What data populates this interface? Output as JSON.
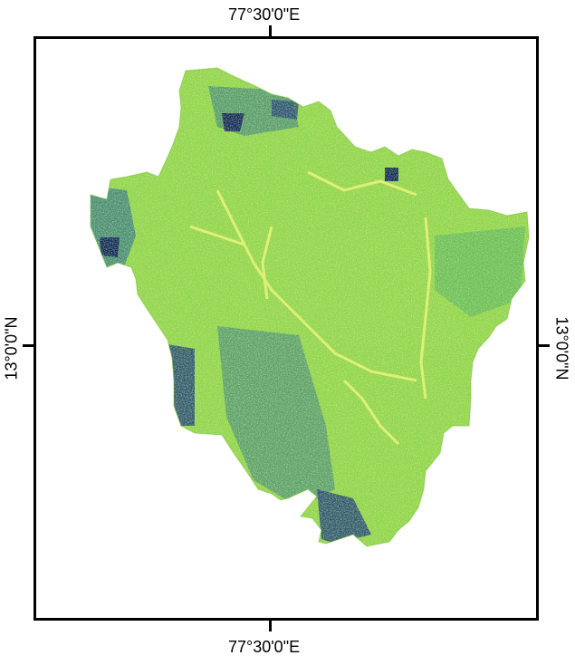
{
  "map": {
    "coord_labels": {
      "top": "77°30'0\"E",
      "bottom": "77°30'0\"E",
      "left": "13°0'0\"N",
      "right": "13°0'0\"N"
    },
    "colors": {
      "base": "#8fd44a",
      "light": "#e6f27a",
      "mid": "#3aa16a",
      "dark": "#1a3a7a",
      "darkest": "#0b1f5c",
      "frame": "#000000"
    }
  }
}
